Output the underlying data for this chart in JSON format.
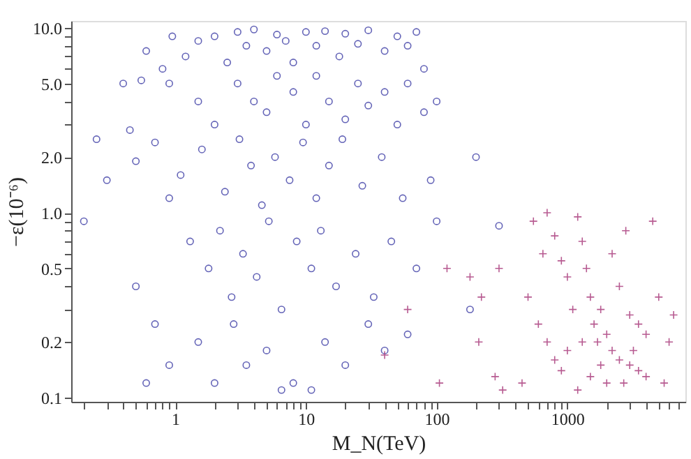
{
  "chart_data": {
    "type": "scatter",
    "xlabel": "M_N(TeV)",
    "ylabel": "−ε(10⁻⁶)",
    "log": "xy",
    "grid": false,
    "xlim": [
      0.16,
      8000
    ],
    "ylim": [
      0.095,
      10.9
    ],
    "xticks": [
      {
        "value": 0.2,
        "label": null
      },
      {
        "value": 0.3,
        "label": null
      },
      {
        "value": 0.4,
        "label": null
      },
      {
        "value": 0.5,
        "label": null
      },
      {
        "value": 0.6,
        "label": null
      },
      {
        "value": 0.7,
        "label": null
      },
      {
        "value": 0.8,
        "label": null
      },
      {
        "value": 0.9,
        "label": null
      },
      1,
      {
        "value": 2,
        "label": null
      },
      {
        "value": 3,
        "label": null
      },
      {
        "value": 4,
        "label": null
      },
      {
        "value": 5,
        "label": null
      },
      {
        "value": 6,
        "label": null
      },
      {
        "value": 7,
        "label": null
      },
      {
        "value": 8,
        "label": null
      },
      {
        "value": 9,
        "label": null
      },
      10,
      {
        "value": 20,
        "label": null
      },
      {
        "value": 30,
        "label": null
      },
      {
        "value": 40,
        "label": null
      },
      {
        "value": 50,
        "label": null
      },
      {
        "value": 60,
        "label": null
      },
      {
        "value": 70,
        "label": null
      },
      {
        "value": 80,
        "label": null
      },
      {
        "value": 90,
        "label": null
      },
      100,
      {
        "value": 200,
        "label": null
      },
      {
        "value": 300,
        "label": null
      },
      {
        "value": 400,
        "label": null
      },
      {
        "value": 500,
        "label": null
      },
      {
        "value": 600,
        "label": null
      },
      {
        "value": 700,
        "label": null
      },
      {
        "value": 800,
        "label": null
      },
      {
        "value": 900,
        "label": null
      },
      1000,
      {
        "value": 2000,
        "label": null
      },
      {
        "value": 3000,
        "label": null
      },
      {
        "value": 4000,
        "label": null
      },
      {
        "value": 5000,
        "label": null
      },
      {
        "value": 6000,
        "label": null
      },
      {
        "value": 7000,
        "label": null
      }
    ],
    "yticks": [
      0.1,
      0.2,
      {
        "value": 0.3,
        "label": null
      },
      {
        "value": 0.4,
        "label": null
      },
      0.5,
      {
        "value": 0.6,
        "label": null
      },
      {
        "value": 0.7,
        "label": null
      },
      {
        "value": 0.8,
        "label": null
      },
      {
        "value": 0.9,
        "label": null
      },
      {
        "value": 1,
        "label": "1.0"
      },
      {
        "value": 2,
        "label": "2.0"
      },
      {
        "value": 3,
        "label": null
      },
      {
        "value": 4,
        "label": null
      },
      {
        "value": 5,
        "label": "5.0"
      },
      {
        "value": 6,
        "label": null
      },
      {
        "value": 7,
        "label": null
      },
      {
        "value": 8,
        "label": null
      },
      {
        "value": 9,
        "label": null
      },
      {
        "value": 10,
        "label": "10.0"
      }
    ],
    "series": [
      {
        "color": "#5454b0",
        "marker": "circle",
        "x": [
          0.2,
          0.25,
          0.3,
          0.4,
          0.45,
          0.5,
          0.55,
          0.6,
          0.7,
          0.8,
          0.9,
          0.95,
          0.5,
          0.7,
          0.6,
          0.9,
          1.2,
          1.5,
          2,
          2.5,
          3,
          3.5,
          4,
          5,
          6,
          7,
          8,
          10,
          12,
          14,
          18,
          20,
          25,
          30,
          40,
          50,
          60,
          70,
          80,
          1.5,
          2,
          3,
          4,
          5,
          6,
          8,
          10,
          12,
          15,
          20,
          25,
          30,
          40,
          50,
          60,
          80,
          100,
          1.1,
          1.6,
          2.4,
          3.1,
          3.8,
          4.6,
          5.8,
          7.5,
          9.5,
          12,
          15,
          19,
          27,
          38,
          55,
          90,
          200,
          1.3,
          1.8,
          2.2,
          2.7,
          3.3,
          4.2,
          5.2,
          6.5,
          8.5,
          11,
          13,
          17,
          24,
          33,
          45,
          70,
          100,
          300,
          0.9,
          1.5,
          2,
          2.8,
          3.5,
          5,
          6.5,
          8,
          11,
          14,
          20,
          30,
          40,
          60,
          180
        ],
        "values": [
          0.9,
          2.5,
          1.5,
          5,
          2.8,
          1.9,
          5.2,
          7.5,
          2.4,
          6,
          5,
          9,
          0.4,
          0.25,
          0.12,
          1.2,
          7,
          8.5,
          9,
          6.5,
          9.5,
          8,
          9.8,
          7.5,
          9.2,
          8.5,
          6.5,
          9.5,
          8,
          9.6,
          7,
          9.3,
          8.2,
          9.7,
          7.5,
          9,
          8,
          9.5,
          6,
          4,
          3,
          5,
          4,
          3.5,
          5.5,
          4.5,
          3,
          5.5,
          4,
          3.2,
          5,
          3.8,
          4.5,
          3,
          5,
          3.5,
          4,
          1.6,
          2.2,
          1.3,
          2.5,
          1.8,
          1.1,
          2,
          1.5,
          2.4,
          1.2,
          1.8,
          2.5,
          1.4,
          2,
          1.2,
          1.5,
          2,
          0.7,
          0.5,
          0.8,
          0.35,
          0.6,
          0.45,
          0.9,
          0.3,
          0.7,
          0.5,
          0.8,
          0.4,
          0.6,
          0.35,
          0.7,
          0.5,
          0.9,
          0.85,
          0.15,
          0.2,
          0.12,
          0.25,
          0.15,
          0.18,
          0.11,
          0.12,
          0.11,
          0.2,
          0.15,
          0.25,
          0.18,
          0.22,
          0.3
        ]
      },
      {
        "color": "#b04a86",
        "marker": "cross",
        "x": [
          120,
          180,
          220,
          300,
          280,
          210,
          40,
          60,
          105,
          320,
          500,
          550,
          650,
          700,
          800,
          900,
          1000,
          1100,
          1200,
          1300,
          1400,
          1500,
          1600,
          1700,
          1800,
          2000,
          2200,
          2500,
          2800,
          3000,
          3200,
          3500,
          4000,
          4500,
          5000,
          5500,
          6000,
          6500,
          700,
          800,
          1000,
          1200,
          1500,
          1800,
          2000,
          2500,
          2700,
          3000,
          3500,
          4000,
          1300,
          2200,
          900,
          600,
          450
        ],
        "values": [
          0.5,
          0.45,
          0.35,
          0.5,
          0.13,
          0.2,
          0.17,
          0.3,
          0.12,
          0.11,
          0.35,
          0.9,
          0.6,
          1.0,
          0.75,
          0.55,
          0.45,
          0.3,
          0.95,
          0.7,
          0.5,
          0.35,
          0.25,
          0.2,
          0.15,
          0.12,
          0.6,
          0.4,
          0.8,
          0.28,
          0.18,
          0.14,
          0.22,
          0.9,
          0.35,
          0.12,
          0.2,
          0.28,
          0.2,
          0.16,
          0.18,
          0.11,
          0.13,
          0.3,
          0.22,
          0.16,
          0.12,
          0.15,
          0.25,
          0.13,
          0.2,
          0.18,
          0.14,
          0.25,
          0.12
        ]
      }
    ]
  }
}
